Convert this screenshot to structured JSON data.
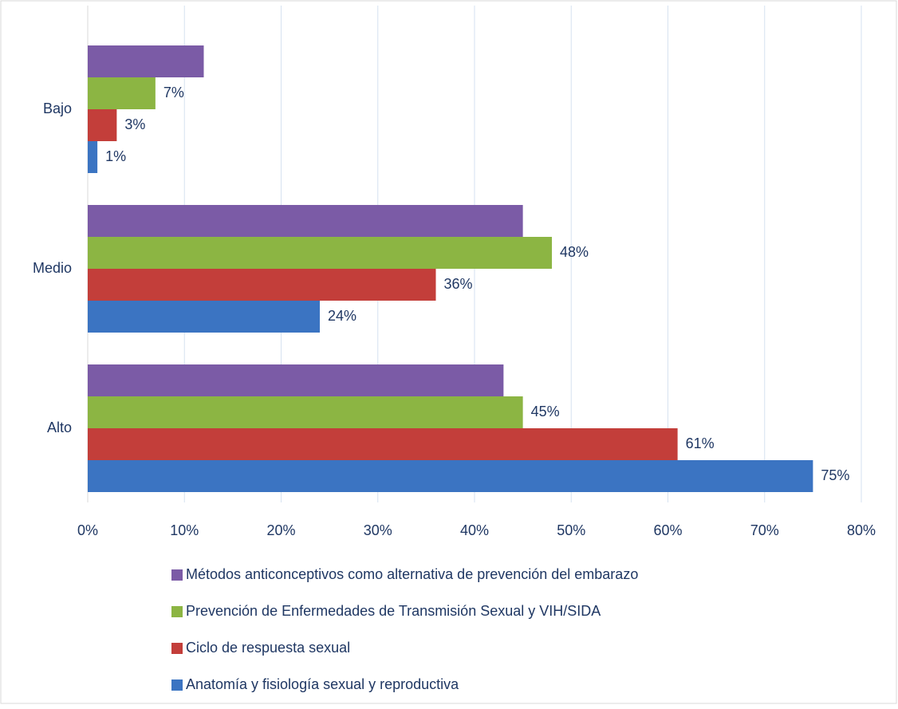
{
  "chart_data": {
    "type": "bar",
    "orientation": "horizontal",
    "categories": [
      "Bajo",
      "Medio",
      "Alto"
    ],
    "series": [
      {
        "name": "Anatomía y fisiología sexual y reproductiva",
        "color": "#3b74c2",
        "values": [
          1,
          24,
          75
        ],
        "value_labels": [
          "1%",
          "24%",
          "75%"
        ]
      },
      {
        "name": "Ciclo de respuesta sexual",
        "color": "#c33e3a",
        "values": [
          3,
          36,
          61
        ],
        "value_labels": [
          "3%",
          "36%",
          "61%"
        ]
      },
      {
        "name": "Prevención de Enfermedades de Transmisión Sexual y VIH/SIDA",
        "color": "#8cb543",
        "values": [
          7,
          48,
          45
        ],
        "value_labels": [
          "7%",
          "48%",
          "45%"
        ]
      },
      {
        "name": "Métodos anticonceptivos como alternativa de prevención del embarazo",
        "color": "#7b5ba6",
        "values": [
          12,
          45,
          43
        ]
      }
    ],
    "xlim": [
      0,
      80
    ],
    "xticks": [
      {
        "value": 0,
        "label": "0%"
      },
      {
        "value": 10,
        "label": "10%"
      },
      {
        "value": 20,
        "label": "20%"
      },
      {
        "value": 30,
        "label": "30%"
      },
      {
        "value": 40,
        "label": "40%"
      },
      {
        "value": 50,
        "label": "50%"
      },
      {
        "value": 60,
        "label": "60%"
      },
      {
        "value": 70,
        "label": "70%"
      },
      {
        "value": 80,
        "label": "80%"
      }
    ],
    "grid": true,
    "legend": "bottom"
  }
}
